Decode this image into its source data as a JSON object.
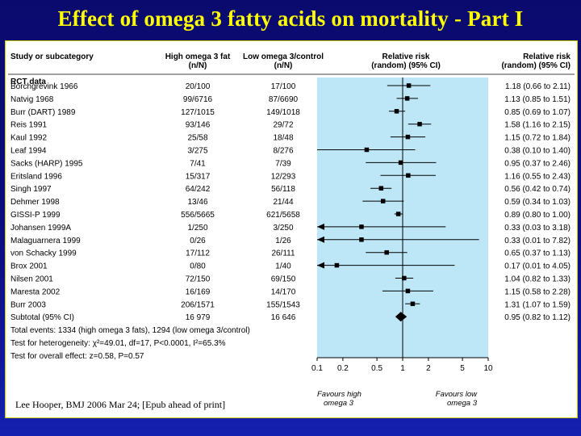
{
  "title": "Effect of omega 3 fatty acids on mortality  - Part I",
  "citation": "Lee Hooper, BMJ  2006 Mar 24; [Epub ahead of print]",
  "colors": {
    "title": "#ffff00",
    "background": "#0d0d80",
    "plot_area": "#bde6f7"
  },
  "chart_data": {
    "type": "forest",
    "headers": {
      "study": "Study or subcategory",
      "high_line1": "High omega 3 fat",
      "high_line2": "(n/N)",
      "low_line1": "Low omega 3/control",
      "low_line2": "(n/N)",
      "rr_line1": "Relative risk",
      "rr_line2": "(random) (95% CI)",
      "rr2_line1": "Relative risk",
      "rr2_line2": "(random) (95% CI)"
    },
    "section_label": "RCT data",
    "x_scale": "log",
    "xlim": [
      0.1,
      10
    ],
    "x_ticks": [
      "0.1",
      "0.2",
      "0.5",
      "1",
      "2",
      "5",
      "10"
    ],
    "x_tick_values": [
      0.1,
      0.2,
      0.5,
      1,
      2,
      5,
      10
    ],
    "favours_left_line1": "Favours high",
    "favours_left_line2": "omega 3",
    "favours_right_line1": "Favours low",
    "favours_right_line2": "omega 3",
    "studies": [
      {
        "name": "Borchgrevink 1966",
        "high": "20/100",
        "low": "17/100",
        "rr": 1.18,
        "lo": 0.66,
        "hi": 2.11,
        "label": "1.18 (0.66 to 2.11)"
      },
      {
        "name": "Natvig 1968",
        "high": "99/6716",
        "low": "87/6690",
        "rr": 1.13,
        "lo": 0.85,
        "hi": 1.51,
        "label": "1.13 (0.85 to 1.51)"
      },
      {
        "name": "Burr (DART) 1989",
        "high": "127/1015",
        "low": "149/1018",
        "rr": 0.85,
        "lo": 0.69,
        "hi": 1.07,
        "label": "0.85 (0.69 to 1.07)"
      },
      {
        "name": "Reis 1991",
        "high": "93/146",
        "low": "29/72",
        "rr": 1.58,
        "lo": 1.16,
        "hi": 2.15,
        "label": "1.58 (1.16 to 2.15)"
      },
      {
        "name": "Kaul 1992",
        "high": "25/58",
        "low": "18/48",
        "rr": 1.15,
        "lo": 0.72,
        "hi": 1.84,
        "label": "1.15 (0.72 to 1.84)"
      },
      {
        "name": "Leaf 1994",
        "high": "3/275",
        "low": "8/276",
        "rr": 0.38,
        "lo": 0.1,
        "hi": 1.4,
        "label": "0.38 (0.10 to 1.40)"
      },
      {
        "name": "Sacks (HARP) 1995",
        "high": "7/41",
        "low": "7/39",
        "rr": 0.95,
        "lo": 0.37,
        "hi": 2.46,
        "label": "0.95 (0.37 to 2.46)"
      },
      {
        "name": "Eritsland 1996",
        "high": "15/317",
        "low": "12/293",
        "rr": 1.16,
        "lo": 0.55,
        "hi": 2.43,
        "label": "1.16 (0.55 to 2.43)"
      },
      {
        "name": "Singh 1997",
        "high": "64/242",
        "low": "56/118",
        "rr": 0.56,
        "lo": 0.42,
        "hi": 0.74,
        "label": "0.56 (0.42 to 0.74)"
      },
      {
        "name": "Dehmer 1998",
        "high": "13/46",
        "low": "21/44",
        "rr": 0.59,
        "lo": 0.34,
        "hi": 1.03,
        "label": "0.59 (0.34 to 1.03)"
      },
      {
        "name": "GISSI-P 1999",
        "high": "556/5665",
        "low": "621/5658",
        "rr": 0.89,
        "lo": 0.8,
        "hi": 1.0,
        "label": "0.89 (0.80 to 1.00)"
      },
      {
        "name": "Johansen 1999A",
        "high": "1/250",
        "low": "3/250",
        "rr": 0.33,
        "lo": 0.03,
        "hi": 3.18,
        "label": "0.33 (0.03 to 3.18)"
      },
      {
        "name": "Malaguarnera 1999",
        "high": "0/26",
        "low": "1/26",
        "rr": 0.33,
        "lo": 0.01,
        "hi": 7.82,
        "label": "0.33 (0.01 to 7.82)"
      },
      {
        "name": "von Schacky 1999",
        "high": "17/112",
        "low": "26/111",
        "rr": 0.65,
        "lo": 0.37,
        "hi": 1.13,
        "label": "0.65 (0.37 to 1.13)"
      },
      {
        "name": "Brox 2001",
        "high": "0/80",
        "low": "1/40",
        "rr": 0.17,
        "lo": 0.01,
        "hi": 4.05,
        "label": "0.17 (0.01 to 4.05)"
      },
      {
        "name": "Nilsen 2001",
        "high": "72/150",
        "low": "69/150",
        "rr": 1.04,
        "lo": 0.82,
        "hi": 1.33,
        "label": "1.04 (0.82 to 1.33)"
      },
      {
        "name": "Maresta 2002",
        "high": "16/169",
        "low": "14/170",
        "rr": 1.15,
        "lo": 0.58,
        "hi": 2.28,
        "label": "1.15 (0.58 to 2.28)"
      },
      {
        "name": "Burr 2003",
        "high": "206/1571",
        "low": "155/1543",
        "rr": 1.31,
        "lo": 1.07,
        "hi": 1.59,
        "label": "1.31 (1.07 to 1.59)"
      }
    ],
    "subtotal": {
      "name": "Subtotal (95% CI)",
      "high": "16 979",
      "low": "16 646",
      "rr": 0.95,
      "lo": 0.82,
      "hi": 1.12,
      "label": "0.95 (0.82 to 1.12)"
    },
    "notes": [
      "Total events: 1334 (high omega 3 fats), 1294 (low omega 3/control)",
      "Test for heterogeneity: χ²=49.01, df=17, P<0.0001, I²=65.3%",
      "Test for overall effect: z=0.58, P=0.57"
    ]
  }
}
